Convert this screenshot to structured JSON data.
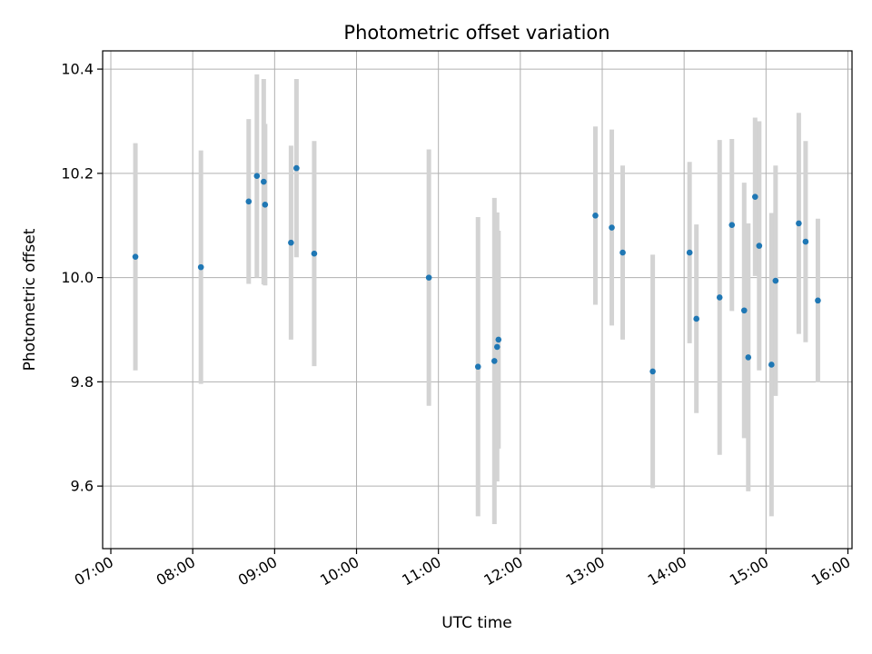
{
  "chart_data": {
    "type": "scatter",
    "title": "Photometric offset variation",
    "xlabel": "UTC time",
    "ylabel": "Photometric offset",
    "xlim": [
      "06:54",
      "16:03"
    ],
    "ylim": [
      9.48,
      10.435
    ],
    "grid": true,
    "colors": {
      "point": "#1f77b4",
      "errorbar": "#d3d3d3"
    },
    "x_ticks": [
      "07:00",
      "08:00",
      "09:00",
      "10:00",
      "11:00",
      "12:00",
      "13:00",
      "14:00",
      "15:00",
      "16:00"
    ],
    "y_ticks": [
      "9.6",
      "9.8",
      "10.0",
      "10.2",
      "10.4"
    ],
    "points": [
      {
        "time": "07:18",
        "y": 10.04,
        "err": 0.218
      },
      {
        "time": "08:06",
        "y": 10.02,
        "err": 0.224
      },
      {
        "time": "08:41",
        "y": 10.146,
        "err": 0.158
      },
      {
        "time": "08:47",
        "y": 10.195,
        "err": 0.195
      },
      {
        "time": "08:52",
        "y": 10.184,
        "err": 0.197
      },
      {
        "time": "08:53",
        "y": 10.14,
        "err": 0.155
      },
      {
        "time": "09:12",
        "y": 10.067,
        "err": 0.186
      },
      {
        "time": "09:16",
        "y": 10.21,
        "err": 0.171
      },
      {
        "time": "09:29",
        "y": 10.046,
        "err": 0.216
      },
      {
        "time": "10:53",
        "y": 10.0,
        "err": 0.246
      },
      {
        "time": "11:29",
        "y": 9.829,
        "err": 0.287
      },
      {
        "time": "11:41",
        "y": 9.84,
        "err": 0.313
      },
      {
        "time": "11:43",
        "y": 9.867,
        "err": 0.258
      },
      {
        "time": "11:44",
        "y": 9.881,
        "err": 0.209
      },
      {
        "time": "12:55",
        "y": 10.119,
        "err": 0.171
      },
      {
        "time": "13:07",
        "y": 10.096,
        "err": 0.188
      },
      {
        "time": "13:15",
        "y": 10.048,
        "err": 0.167
      },
      {
        "time": "13:37",
        "y": 9.82,
        "err": 0.224
      },
      {
        "time": "14:04",
        "y": 10.048,
        "err": 0.174
      },
      {
        "time": "14:09",
        "y": 9.921,
        "err": 0.181
      },
      {
        "time": "14:26",
        "y": 9.962,
        "err": 0.302
      },
      {
        "time": "14:35",
        "y": 10.101,
        "err": 0.165
      },
      {
        "time": "14:44",
        "y": 9.937,
        "err": 0.245
      },
      {
        "time": "14:47",
        "y": 9.847,
        "err": 0.257
      },
      {
        "time": "14:52",
        "y": 10.155,
        "err": 0.152
      },
      {
        "time": "14:55",
        "y": 10.061,
        "err": 0.239
      },
      {
        "time": "15:04",
        "y": 9.833,
        "err": 0.291
      },
      {
        "time": "15:07",
        "y": 9.994,
        "err": 0.221
      },
      {
        "time": "15:24",
        "y": 10.104,
        "err": 0.212
      },
      {
        "time": "15:29",
        "y": 10.069,
        "err": 0.193
      },
      {
        "time": "15:38",
        "y": 9.956,
        "err": 0.157
      }
    ]
  }
}
